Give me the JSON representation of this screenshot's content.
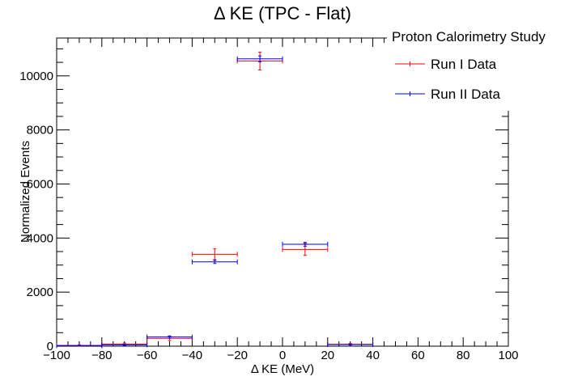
{
  "chart_data": {
    "type": "scatter",
    "title": "Δ KE (TPC - Flat)",
    "xlabel": "Δ KE (MeV)",
    "ylabel": "Normalized Events",
    "xlim": [
      -100,
      100
    ],
    "ylim": [
      0,
      11400
    ],
    "x_ticks": [
      -100,
      -80,
      -60,
      -40,
      -20,
      0,
      20,
      40,
      60,
      80,
      100
    ],
    "y_ticks": [
      0,
      2000,
      4000,
      6000,
      8000,
      10000
    ],
    "legend": {
      "header": "Proton Calorimetry Study",
      "placement": "top-right"
    },
    "series": [
      {
        "name": "Run I Data",
        "color": "#ff0000",
        "bin_halfwidth": 10,
        "points": [
          {
            "x": -90,
            "y": 30,
            "err": 20
          },
          {
            "x": -70,
            "y": 80,
            "err": 40
          },
          {
            "x": -50,
            "y": 290,
            "err": 80
          },
          {
            "x": -30,
            "y": 3400,
            "err": 200
          },
          {
            "x": -10,
            "y": 10550,
            "err": 330
          },
          {
            "x": 10,
            "y": 3580,
            "err": 220
          },
          {
            "x": 30,
            "y": 70,
            "err": 30
          }
        ]
      },
      {
        "name": "Run II Data",
        "color": "#0000ff",
        "bin_halfwidth": 10,
        "points": [
          {
            "x": -90,
            "y": 20,
            "err": 10
          },
          {
            "x": -70,
            "y": 50,
            "err": 20
          },
          {
            "x": -50,
            "y": 340,
            "err": 40
          },
          {
            "x": -30,
            "y": 3120,
            "err": 60
          },
          {
            "x": -10,
            "y": 10630,
            "err": 110
          },
          {
            "x": 10,
            "y": 3770,
            "err": 70
          },
          {
            "x": 30,
            "y": 60,
            "err": 15
          }
        ]
      }
    ]
  }
}
